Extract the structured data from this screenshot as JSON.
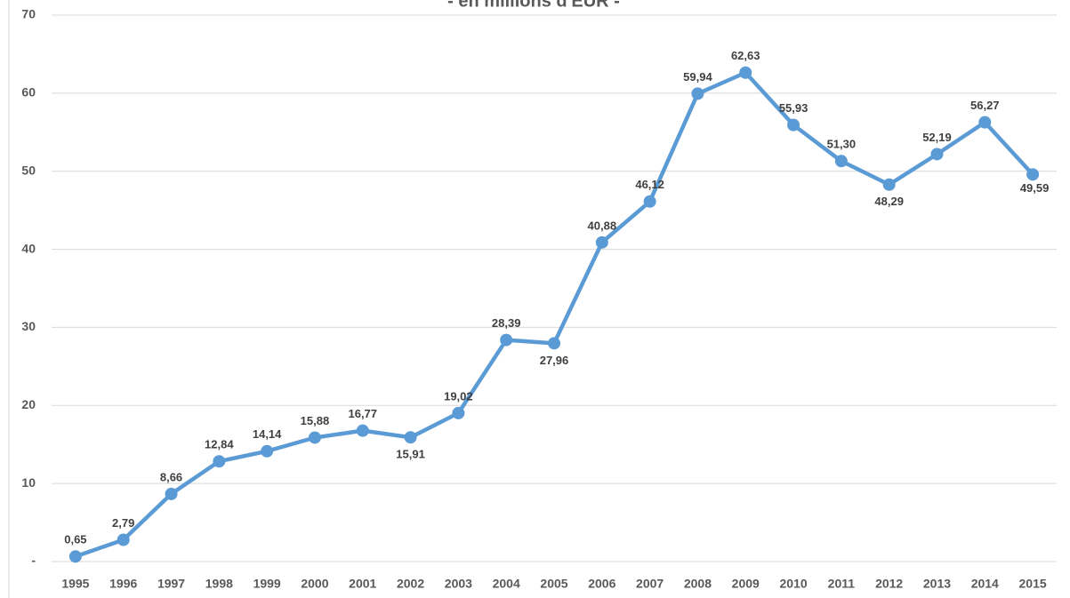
{
  "chart_data": {
    "type": "line",
    "subtitle": "- en millions d'EUR -",
    "categories": [
      "1995",
      "1996",
      "1997",
      "1998",
      "1999",
      "2000",
      "2001",
      "2002",
      "2003",
      "2004",
      "2005",
      "2006",
      "2007",
      "2008",
      "2009",
      "2010",
      "2011",
      "2012",
      "2013",
      "2014",
      "2015"
    ],
    "series": [
      {
        "name": "EUR",
        "color": "#5b9bd5",
        "values": [
          0.65,
          2.79,
          8.66,
          12.84,
          14.14,
          15.88,
          16.77,
          15.91,
          19.02,
          28.39,
          27.96,
          40.88,
          46.12,
          59.94,
          62.63,
          55.93,
          51.3,
          48.29,
          52.19,
          56.27,
          49.59
        ],
        "value_labels": [
          "0,65",
          "2,79",
          "8,66",
          "12,84",
          "14,14",
          "15,88",
          "16,77",
          "15,91",
          "19,02",
          "28,39",
          "27,96",
          "40,88",
          "46,12",
          "59,94",
          "62,63",
          "55,93",
          "51,30",
          "48,29",
          "52,19",
          "56,27",
          "49,59"
        ]
      }
    ],
    "ylim": [
      0,
      70
    ],
    "yticks": [
      {
        "value": 0,
        "label": "-"
      },
      10,
      20,
      30,
      40,
      50,
      60,
      70
    ],
    "grid": true
  }
}
